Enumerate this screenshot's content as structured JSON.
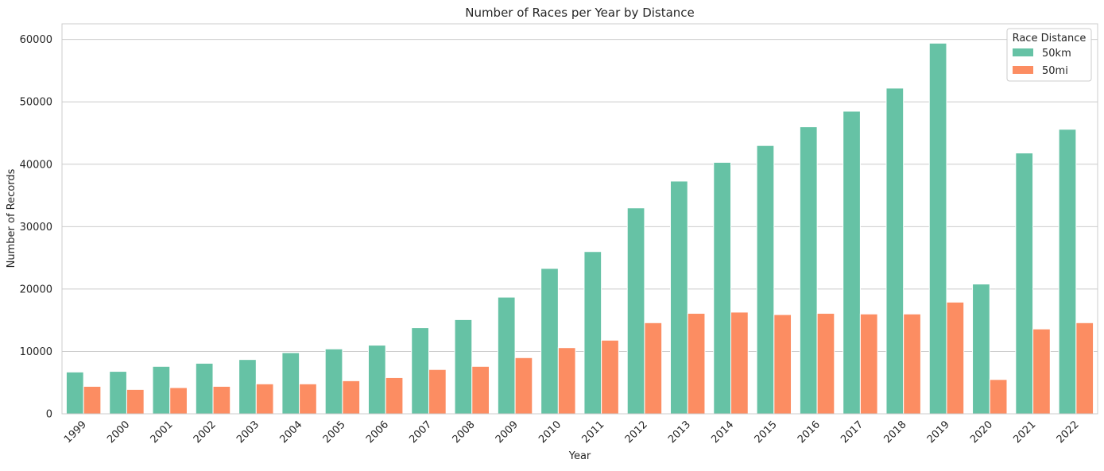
{
  "chart_data": {
    "type": "bar",
    "title": "Number of Races per Year by Distance",
    "xlabel": "Year",
    "ylabel": "Number of Records",
    "categories": [
      "1999",
      "2000",
      "2001",
      "2002",
      "2003",
      "2004",
      "2005",
      "2006",
      "2007",
      "2008",
      "2009",
      "2010",
      "2011",
      "2012",
      "2013",
      "2014",
      "2015",
      "2016",
      "2017",
      "2018",
      "2019",
      "2020",
      "2021",
      "2022"
    ],
    "series": [
      {
        "name": "50km",
        "color": "#66c2a5",
        "values": [
          6700,
          6800,
          7600,
          8100,
          8700,
          9800,
          10400,
          11000,
          13800,
          15100,
          18700,
          23300,
          26000,
          33000,
          37300,
          40300,
          43000,
          46000,
          48500,
          52200,
          59400,
          20800,
          41800,
          45600
        ]
      },
      {
        "name": "50mi",
        "color": "#fc8d62",
        "values": [
          4400,
          3900,
          4200,
          4400,
          4800,
          4800,
          5300,
          5800,
          7100,
          7600,
          9000,
          10600,
          11800,
          14600,
          16100,
          16300,
          15900,
          16100,
          16000,
          16000,
          17900,
          5500,
          13600,
          14600
        ]
      }
    ],
    "ylim": [
      0,
      62500
    ],
    "yticks": [
      0,
      10000,
      20000,
      30000,
      40000,
      50000,
      60000
    ],
    "ytick_labels": [
      "0",
      "10000",
      "20000",
      "30000",
      "40000",
      "50000",
      "60000"
    ],
    "grid": "horizontal",
    "legend": {
      "title": "Race Distance",
      "placement": "top-right"
    }
  }
}
